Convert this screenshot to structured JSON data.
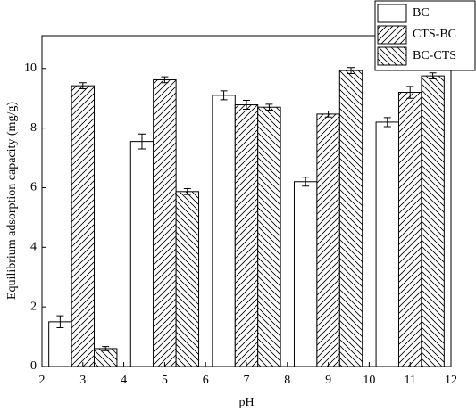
{
  "chart_data": {
    "type": "bar",
    "x_label": "pH",
    "y_label": "Equilibrium adsorption capacity (mg/g)",
    "x": [
      3,
      5,
      7,
      9,
      11
    ],
    "series": [
      {
        "name": "BC",
        "color": "#000000",
        "hatch": "none",
        "values": [
          1.5,
          7.55,
          9.1,
          6.2,
          8.2
        ],
        "errors": [
          0.2,
          0.25,
          0.15,
          0.15,
          0.15
        ]
      },
      {
        "name": "CTS-BC",
        "color": "#000000",
        "hatch": "/",
        "values": [
          9.42,
          9.62,
          8.78,
          8.47,
          9.2
        ],
        "errors": [
          0.1,
          0.1,
          0.15,
          0.1,
          0.2
        ]
      },
      {
        "name": "BC-CTS",
        "color": "#000000",
        "hatch": "\\",
        "values": [
          0.6,
          5.87,
          8.7,
          9.93,
          9.75
        ],
        "errors": [
          0.07,
          0.1,
          0.1,
          0.1,
          0.1
        ]
      }
    ],
    "xlim": [
      2,
      12
    ],
    "xticks": [
      2,
      3,
      4,
      5,
      6,
      7,
      8,
      9,
      10,
      11,
      12
    ],
    "ylim": [
      0,
      11.1
    ],
    "yticks": [
      0,
      2,
      4,
      6,
      8,
      10
    ],
    "legend": "top-right"
  }
}
